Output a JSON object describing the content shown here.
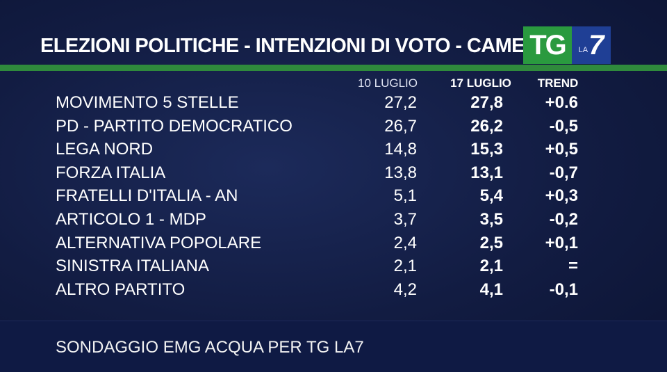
{
  "header": {
    "title": "ELEZIONI POLITICHE - INTENZIONI DI VOTO - CAMERA",
    "logo": {
      "tg": "TG",
      "la": "LA",
      "seven": "7"
    }
  },
  "colors": {
    "accent_green": "#2f8a3c",
    "logo_green": "#2a9a3f",
    "logo_blue": "#1f3f95",
    "background": "#121c42"
  },
  "chart_data": {
    "type": "table",
    "columns": [
      "10 LUGLIO",
      "17 LUGLIO",
      "TREND"
    ],
    "rows": [
      {
        "party": "MOVIMENTO 5 STELLE",
        "v1": "27,2",
        "v2": "27,8",
        "trend": "+0.6"
      },
      {
        "party": "PD - PARTITO DEMOCRATICO",
        "v1": "26,7",
        "v2": "26,2",
        "trend": "-0,5"
      },
      {
        "party": "LEGA NORD",
        "v1": "14,8",
        "v2": "15,3",
        "trend": "+0,5"
      },
      {
        "party": "FORZA ITALIA",
        "v1": "13,8",
        "v2": "13,1",
        "trend": "-0,7"
      },
      {
        "party": "FRATELLI D'ITALIA - AN",
        "v1": "5,1",
        "v2": "5,4",
        "trend": "+0,3"
      },
      {
        "party": "ARTICOLO 1 - MDP",
        "v1": "3,7",
        "v2": "3,5",
        "trend": "-0,2"
      },
      {
        "party": "ALTERNATIVA POPOLARE",
        "v1": "2,4",
        "v2": "2,5",
        "trend": "+0,1"
      },
      {
        "party": "SINISTRA ITALIANA",
        "v1": "2,1",
        "v2": "2,1",
        "trend": "="
      },
      {
        "party": "ALTRO PARTITO",
        "v1": "4,2",
        "v2": "4,1",
        "trend": "-0,1"
      }
    ]
  },
  "footer": {
    "source": "SONDAGGIO EMG ACQUA PER TG LA7"
  }
}
